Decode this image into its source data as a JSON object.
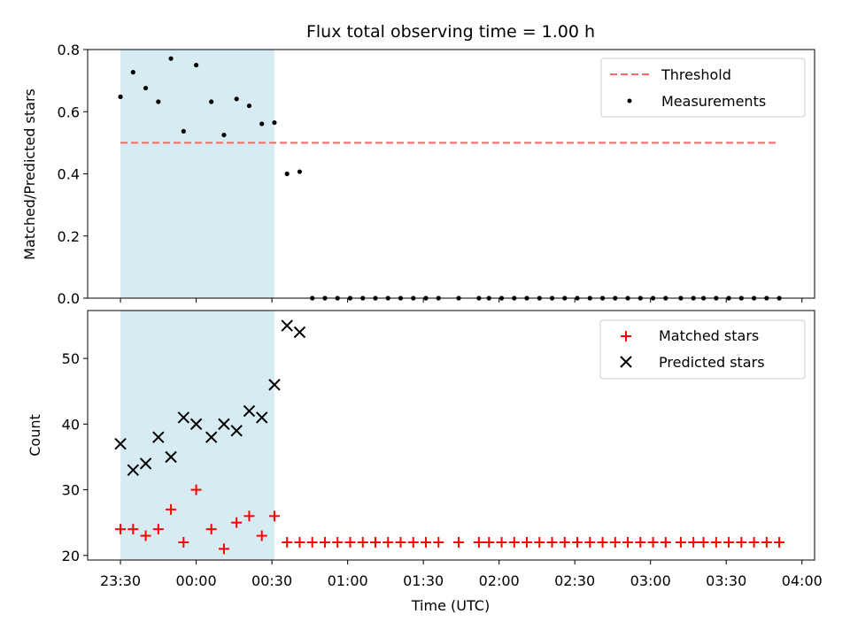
{
  "chart_data": [
    {
      "type": "scatter",
      "title": "Flux total observing time = 1.00 h",
      "xlabel": "",
      "ylabel": "Matched/Predicted stars",
      "ylim": [
        0,
        0.8
      ],
      "yticks": [
        "0.0",
        "0.2",
        "0.4",
        "0.6",
        "0.8"
      ],
      "xlim": [
        "23:17",
        "04:05"
      ],
      "shaded_interval": [
        "23:30",
        "00:31"
      ],
      "shade_color": "#add8e6",
      "legend_position": "top-right",
      "threshold": {
        "name": "Threshold",
        "value": 0.5,
        "x_start": "23:30",
        "x_end": "03:51",
        "color": "#ff6666",
        "style": "dashed"
      },
      "series": [
        {
          "name": "Measurements",
          "color": "#000000",
          "points": [
            [
              "23:30",
              0.648
            ],
            [
              "23:35",
              0.727
            ],
            [
              "23:40",
              0.676
            ],
            [
              "23:45",
              0.632
            ],
            [
              "23:50",
              0.771
            ],
            [
              "23:55",
              0.537
            ],
            [
              "00:00",
              0.75
            ],
            [
              "00:06",
              0.632
            ],
            [
              "00:11",
              0.525
            ],
            [
              "00:16",
              0.641
            ],
            [
              "00:21",
              0.619
            ],
            [
              "00:26",
              0.561
            ],
            [
              "00:31",
              0.565
            ],
            [
              "00:36",
              0.4
            ],
            [
              "00:41",
              0.407
            ],
            [
              "00:46",
              0
            ],
            [
              "00:51",
              0
            ],
            [
              "00:56",
              0
            ],
            [
              "01:01",
              0
            ],
            [
              "01:06",
              0
            ],
            [
              "01:11",
              0
            ],
            [
              "01:16",
              0
            ],
            [
              "01:21",
              0
            ],
            [
              "01:26",
              0
            ],
            [
              "01:31",
              0
            ],
            [
              "01:36",
              0
            ],
            [
              "01:44",
              0
            ],
            [
              "01:52",
              0
            ],
            [
              "01:56",
              0
            ],
            [
              "02:01",
              0
            ],
            [
              "02:06",
              0
            ],
            [
              "02:11",
              0
            ],
            [
              "02:16",
              0
            ],
            [
              "02:21",
              0
            ],
            [
              "02:26",
              0
            ],
            [
              "02:31",
              0
            ],
            [
              "02:36",
              0
            ],
            [
              "02:41",
              0
            ],
            [
              "02:46",
              0
            ],
            [
              "02:51",
              0
            ],
            [
              "02:56",
              0
            ],
            [
              "03:01",
              0
            ],
            [
              "03:06",
              0
            ],
            [
              "03:12",
              0
            ],
            [
              "03:17",
              0
            ],
            [
              "03:21",
              0
            ],
            [
              "03:26",
              0
            ],
            [
              "03:31",
              0
            ],
            [
              "03:36",
              0
            ],
            [
              "03:41",
              0
            ],
            [
              "03:46",
              0
            ],
            [
              "03:51",
              0
            ]
          ]
        }
      ]
    },
    {
      "type": "scatter",
      "title": "",
      "xlabel": "Time (UTC)",
      "ylabel": "Count",
      "ylim": [
        19.3,
        57.3
      ],
      "yticks": [
        "20",
        "30",
        "40",
        "50"
      ],
      "xlim": [
        "23:17",
        "04:05"
      ],
      "xticks": [
        "23:30",
        "00:00",
        "00:30",
        "01:00",
        "01:30",
        "02:00",
        "02:30",
        "03:00",
        "03:30",
        "04:00"
      ],
      "shaded_interval": [
        "23:30",
        "00:31"
      ],
      "shade_color": "#add8e6",
      "legend_position": "top-right",
      "series": [
        {
          "name": "Matched stars",
          "marker": "plus",
          "color": "#ff0000",
          "points": [
            [
              "23:30",
              24
            ],
            [
              "23:35",
              24
            ],
            [
              "23:40",
              23
            ],
            [
              "23:45",
              24
            ],
            [
              "23:50",
              27
            ],
            [
              "23:55",
              22
            ],
            [
              "00:00",
              30
            ],
            [
              "00:06",
              24
            ],
            [
              "00:11",
              21
            ],
            [
              "00:16",
              25
            ],
            [
              "00:21",
              26
            ],
            [
              "00:26",
              23
            ],
            [
              "00:31",
              26
            ],
            [
              "00:36",
              22
            ],
            [
              "00:41",
              22
            ],
            [
              "00:46",
              22
            ],
            [
              "00:51",
              22
            ],
            [
              "00:56",
              22
            ],
            [
              "01:01",
              22
            ],
            [
              "01:06",
              22
            ],
            [
              "01:11",
              22
            ],
            [
              "01:16",
              22
            ],
            [
              "01:21",
              22
            ],
            [
              "01:26",
              22
            ],
            [
              "01:31",
              22
            ],
            [
              "01:36",
              22
            ],
            [
              "01:44",
              22
            ],
            [
              "01:52",
              22
            ],
            [
              "01:56",
              22
            ],
            [
              "02:01",
              22
            ],
            [
              "02:06",
              22
            ],
            [
              "02:11",
              22
            ],
            [
              "02:16",
              22
            ],
            [
              "02:21",
              22
            ],
            [
              "02:26",
              22
            ],
            [
              "02:31",
              22
            ],
            [
              "02:36",
              22
            ],
            [
              "02:41",
              22
            ],
            [
              "02:46",
              22
            ],
            [
              "02:51",
              22
            ],
            [
              "02:56",
              22
            ],
            [
              "03:01",
              22
            ],
            [
              "03:06",
              22
            ],
            [
              "03:12",
              22
            ],
            [
              "03:17",
              22
            ],
            [
              "03:21",
              22
            ],
            [
              "03:26",
              22
            ],
            [
              "03:31",
              22
            ],
            [
              "03:36",
              22
            ],
            [
              "03:41",
              22
            ],
            [
              "03:46",
              22
            ],
            [
              "03:51",
              22
            ]
          ]
        },
        {
          "name": "Predicted stars",
          "marker": "x",
          "color": "#000000",
          "points": [
            [
              "23:30",
              37
            ],
            [
              "23:35",
              33
            ],
            [
              "23:40",
              34
            ],
            [
              "23:45",
              38
            ],
            [
              "23:50",
              35
            ],
            [
              "23:55",
              41
            ],
            [
              "00:00",
              40
            ],
            [
              "00:06",
              38
            ],
            [
              "00:11",
              40
            ],
            [
              "00:16",
              39
            ],
            [
              "00:21",
              42
            ],
            [
              "00:26",
              41
            ],
            [
              "00:31",
              46
            ],
            [
              "00:36",
              55
            ],
            [
              "00:41",
              54
            ]
          ]
        }
      ]
    }
  ]
}
